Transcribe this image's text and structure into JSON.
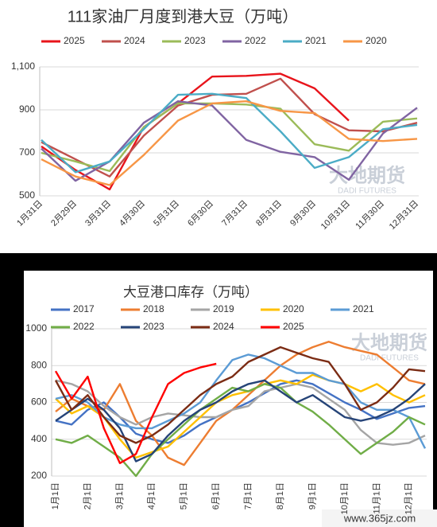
{
  "chart_data": [
    {
      "type": "line",
      "title": "111家油厂月度到港大豆（万吨）",
      "watermark": [
        "大地期货",
        "DADI FUTURES"
      ],
      "categories": [
        "1月31日",
        "2月29日",
        "3月31日",
        "4月30日",
        "5月31日",
        "6月30日",
        "7月31日",
        "8月31日",
        "9月30日",
        "10月31日",
        "11月30日",
        "12月31日"
      ],
      "ylim": [
        500,
        1100
      ],
      "yticks": [
        500,
        700,
        900,
        {
          "value": 1100,
          "label": "1,100"
        }
      ],
      "grid": true,
      "legend": "top",
      "series": [
        {
          "name": "2025",
          "color": "#e8141b",
          "values": [
            730,
            620,
            530,
            820,
            930,
            1055,
            1058,
            1068,
            1000,
            850,
            null,
            null
          ]
        },
        {
          "name": "2024",
          "color": "#c0504d",
          "values": [
            750,
            670,
            590,
            780,
            920,
            970,
            975,
            1045,
            880,
            805,
            800,
            840
          ]
        },
        {
          "name": "2023",
          "color": "#9bbb59",
          "values": [
            700,
            660,
            615,
            820,
            930,
            930,
            925,
            905,
            740,
            710,
            845,
            860
          ]
        },
        {
          "name": "2022",
          "color": "#8064a2",
          "values": [
            720,
            570,
            660,
            840,
            940,
            920,
            760,
            705,
            680,
            575,
            790,
            910
          ]
        },
        {
          "name": "2021",
          "color": "#4bacc6",
          "values": [
            760,
            610,
            660,
            810,
            970,
            975,
            955,
            800,
            630,
            680,
            810,
            830
          ]
        },
        {
          "name": "2020",
          "color": "#f79646",
          "values": [
            670,
            590,
            550,
            690,
            850,
            930,
            940,
            895,
            885,
            765,
            755,
            765
          ]
        }
      ]
    },
    {
      "type": "line",
      "title": "大豆港口库存（万吨）",
      "watermark": [
        "大地期货",
        "DADI FUTURES"
      ],
      "categories": [
        "1月1日",
        null,
        "2月1日",
        null,
        "3月1日",
        null,
        "4月1日",
        null,
        "5月1日",
        null,
        "6月1日",
        null,
        "7月1日",
        null,
        "8月1日",
        null,
        "9月1日",
        null,
        "10月1日",
        null,
        "11月1日",
        null,
        "12月1日",
        null
      ],
      "ylim": [
        200,
        1000
      ],
      "yticks": [
        200,
        400,
        600,
        800,
        1000
      ],
      "grid": true,
      "legend": "top",
      "series": [
        {
          "name": "2017",
          "color": "#4472c4",
          "values": [
            500,
            480,
            560,
            600,
            520,
            430,
            400,
            380,
            420,
            480,
            520,
            560,
            600,
            650,
            700,
            720,
            700,
            650,
            600,
            560,
            510,
            540,
            570,
            580
          ]
        },
        {
          "name": "2018",
          "color": "#ed7d31",
          "values": [
            550,
            620,
            580,
            560,
            700,
            500,
            420,
            300,
            260,
            380,
            500,
            560,
            640,
            720,
            800,
            860,
            900,
            930,
            900,
            880,
            860,
            790,
            720,
            700
          ]
        },
        {
          "name": "2019",
          "color": "#a5a5a5",
          "values": [
            720,
            700,
            660,
            580,
            520,
            480,
            520,
            540,
            530,
            520,
            520,
            560,
            580,
            660,
            680,
            700,
            680,
            620,
            560,
            450,
            380,
            370,
            380,
            420
          ]
        },
        {
          "name": "2020",
          "color": "#ffc000",
          "values": [
            620,
            540,
            580,
            520,
            400,
            300,
            330,
            360,
            440,
            520,
            600,
            640,
            660,
            700,
            720,
            700,
            750,
            720,
            700,
            660,
            700,
            640,
            600,
            640
          ]
        },
        {
          "name": "2021",
          "color": "#5b9bd5",
          "values": [
            620,
            640,
            600,
            520,
            480,
            460,
            460,
            500,
            540,
            600,
            720,
            830,
            860,
            840,
            800,
            760,
            760,
            720,
            700,
            600,
            560,
            560,
            520,
            350
          ]
        },
        {
          "name": "2022",
          "color": "#70ad47",
          "values": [
            400,
            380,
            420,
            360,
            300,
            200,
            320,
            400,
            480,
            560,
            620,
            680,
            660,
            700,
            680,
            600,
            550,
            480,
            400,
            320,
            380,
            440,
            520,
            480
          ]
        },
        {
          "name": "2023",
          "color": "#264478",
          "values": [
            500,
            560,
            620,
            560,
            460,
            280,
            320,
            420,
            500,
            560,
            600,
            660,
            700,
            720,
            660,
            600,
            640,
            580,
            520,
            500,
            520,
            560,
            620,
            700
          ]
        },
        {
          "name": "2024",
          "color": "#7b2c14",
          "values": [
            720,
            560,
            640,
            520,
            420,
            380,
            420,
            480,
            560,
            640,
            700,
            740,
            820,
            860,
            900,
            870,
            840,
            820,
            700,
            560,
            600,
            680,
            780,
            770
          ]
        },
        {
          "name": "2025",
          "color": "#ff0000",
          "values": [
            770,
            620,
            740,
            460,
            270,
            320,
            520,
            700,
            760,
            790,
            810,
            null,
            null,
            null,
            null,
            null,
            null,
            null,
            null,
            null,
            null,
            null,
            null,
            null
          ]
        }
      ]
    }
  ],
  "site_watermark": "www.365jz.com"
}
